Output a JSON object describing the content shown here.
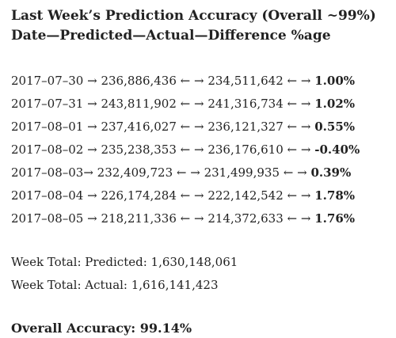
{
  "header": {
    "title": "Last Week’s Prediction Accuracy (Overall ~99%)",
    "columns": "Date—Predicted—Actual—Difference %age"
  },
  "rows": [
    {
      "date_predicted": "2017–07–30 → 236,886,436 ←",
      "actual": "→ 234,511,642 ← →",
      "diff": "1.00%"
    },
    {
      "date_predicted": "2017–07–31 → 243,811,902 ←",
      "actual": "→ 241,316,734 ← →",
      "diff": "1.02%"
    },
    {
      "date_predicted": "2017–08–01 → 237,416,027 ←",
      "actual": "→ 236,121,327 ← →",
      "diff": "0.55%"
    },
    {
      "date_predicted": "2017–08–02 → 235,238,353 ←",
      "actual": "→ 236,176,610 ← →",
      "diff": "-0.40%"
    },
    {
      "date_predicted": "2017–08–03→ 232,409,723 ←",
      "actual": "→ 231,499,935 ← →",
      "diff": "0.39%"
    },
    {
      "date_predicted": "2017–08–04 → 226,174,284 ←",
      "actual": "→ 222,142,542 ← →",
      "diff": "1.78%"
    },
    {
      "date_predicted": "2017–08–05 → 218,211,336 ←",
      "actual": "→ 214,372,633 ← →",
      "diff": "1.76%"
    }
  ],
  "totals": {
    "predicted": "Week Total: Predicted: 1,630,148,061",
    "actual": "Week Total: Actual: 1,616,141,423"
  },
  "overall": "Overall Accuracy: 99.14%"
}
